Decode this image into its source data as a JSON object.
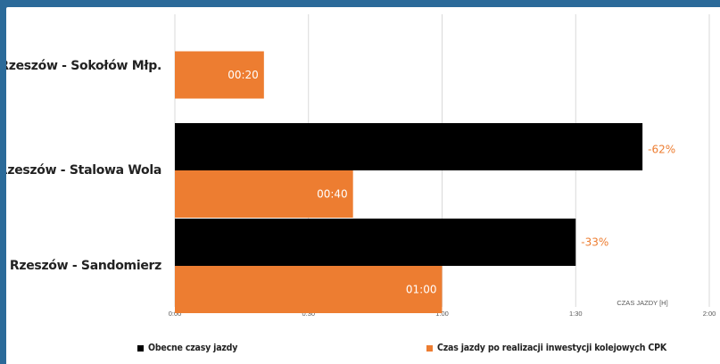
{
  "chart_data": {
    "type": "bar",
    "orientation": "horizontal",
    "categories": [
      "Rzeszów - Sokołów Młp.",
      "Rzeszów - Stalowa Wola",
      "Rzeszów - Sandomierz"
    ],
    "series": [
      {
        "name": "Obecne czasy jazdy",
        "color": "#000000",
        "values": [
          null,
          1.75,
          1.5
        ],
        "unit": "h"
      },
      {
        "name": "Czas jazdy po realizacji inwestycji kolejowych CPK",
        "color": "#ed7d31",
        "values": [
          0.3333,
          0.6667,
          1.0
        ],
        "unit": "h",
        "data_labels": [
          "00:20",
          "00:40",
          "01:00"
        ]
      }
    ],
    "change_labels": [
      "",
      "-62%",
      "-33%"
    ],
    "xlim": [
      0,
      2
    ],
    "xticks": [
      0,
      0.5,
      1,
      1.5,
      2
    ],
    "xtick_labels": [
      "0:00",
      "0:30",
      "1:00",
      "1:30",
      "2:00"
    ],
    "xlabel": "CZAS JAZDY [H]",
    "grid": "vertical",
    "legend_position": "bottom"
  },
  "colors": {
    "orange": "#ed7d31",
    "black": "#000000",
    "frame": "#2b6a99"
  }
}
